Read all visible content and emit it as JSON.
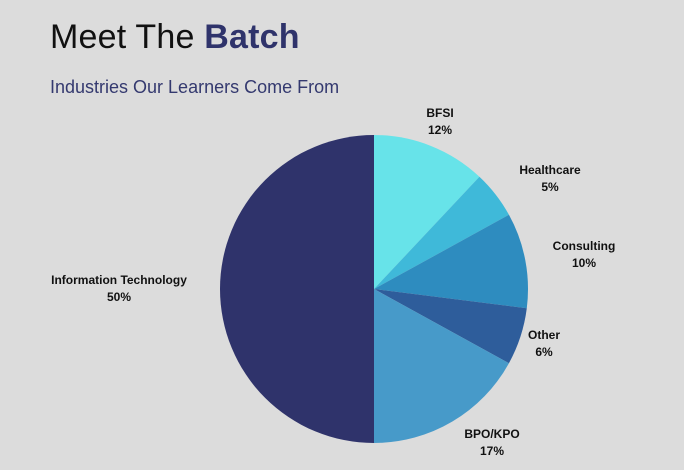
{
  "header": {
    "title_plain": "Meet The ",
    "title_accent": "Batch",
    "subtitle": "Industries Our Learners Come From"
  },
  "colors": {
    "background": "#dcdcdc",
    "accent": "#2f336b"
  },
  "chart_data": {
    "type": "pie",
    "start_angle_deg": 0,
    "direction": "clockwise",
    "slices": [
      {
        "label": "BFSI",
        "value": 12,
        "value_label": "12%",
        "color": "#67e3e9"
      },
      {
        "label": "Healthcare",
        "value": 5,
        "value_label": "5%",
        "color": "#3fb9d9"
      },
      {
        "label": "Consulting",
        "value": 10,
        "value_label": "10%",
        "color": "#2e8cbf"
      },
      {
        "label": "Other",
        "value": 6,
        "value_label": "6%",
        "color": "#2e5d9b"
      },
      {
        "label": "BPO/KPO",
        "value": 17,
        "value_label": "17%",
        "color": "#479ac9"
      },
      {
        "label": "Information Technology",
        "value": 50,
        "value_label": "50%",
        "color": "#2f336b"
      }
    ]
  }
}
